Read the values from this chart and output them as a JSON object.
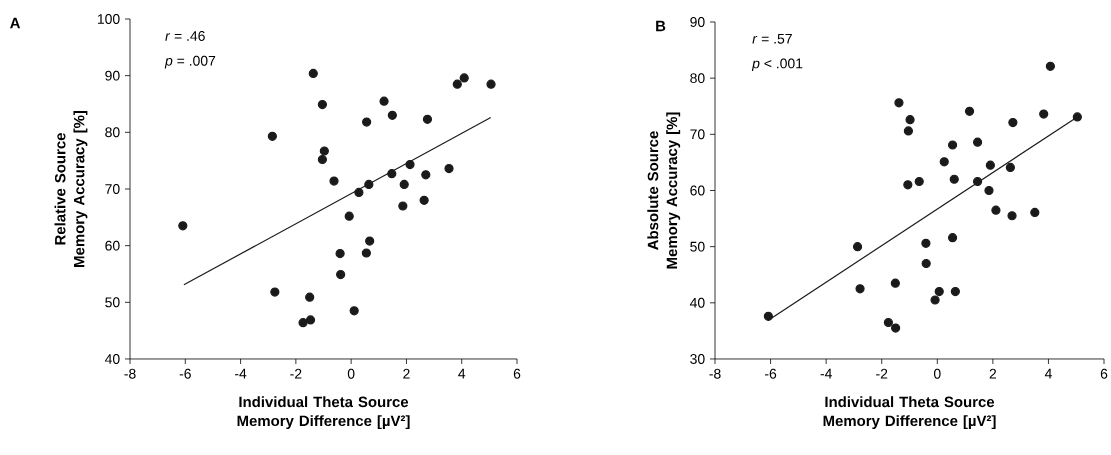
{
  "chart_data": [
    {
      "type": "scatter",
      "title": "A",
      "xlabel": "Individual Theta Source Memory Difference [µV²]",
      "ylabel": "Relative Source Memory Accuracy [%]",
      "annotations": [
        "*r* = .46",
        "*p* = .007"
      ],
      "grid": false,
      "xlim": [
        -8,
        6
      ],
      "xticks": [
        -8,
        -6,
        -4,
        -2,
        0,
        2,
        4,
        6
      ],
      "ylim": [
        40,
        100
      ],
      "yticks": [
        40,
        50,
        60,
        70,
        80,
        90,
        100
      ],
      "series": [
        {
          "marker": "circle",
          "color": "#1a1a1a",
          "x": [
            -6.09,
            -2.85,
            -2.76,
            -1.37,
            -1.5,
            -1.74,
            -1.47,
            -1.04,
            -0.97,
            -1.04,
            -0.62,
            -0.4,
            -0.38,
            -0.07,
            0.11,
            0.28,
            0.56,
            0.64,
            0.55,
            0.67,
            1.19,
            1.49,
            1.47,
            1.87,
            1.92,
            2.13,
            2.64,
            2.7,
            2.76,
            3.54,
            3.84,
            4.09,
            5.06
          ],
          "values": [
            63.5,
            79.3,
            51.8,
            90.4,
            50.9,
            46.4,
            46.9,
            84.9,
            76.7,
            75.2,
            71.4,
            58.6,
            54.9,
            65.2,
            48.5,
            69.4,
            81.8,
            70.8,
            58.7,
            60.8,
            85.5,
            83.0,
            72.7,
            67.0,
            70.8,
            74.3,
            68.0,
            72.5,
            82.3,
            73.6,
            88.5,
            89.6,
            88.5
          ]
        },
        {
          "type": "line",
          "marker": "none",
          "color": "#1a1a1a",
          "x": [
            -6.05,
            5.05
          ],
          "values": [
            53.1,
            82.6
          ]
        }
      ]
    },
    {
      "type": "scatter",
      "title": "B",
      "xlabel": "Individual Theta Source Memory Difference [µV²]",
      "ylabel": "Absolute Source Memory Accuracy [%]",
      "annotations": [
        "*r* = .57",
        "*p* < .001"
      ],
      "grid": false,
      "xlim": [
        -8,
        6
      ],
      "xticks": [
        -8,
        -6,
        -4,
        -2,
        0,
        2,
        4,
        6
      ],
      "ylim": [
        30,
        90
      ],
      "yticks": [
        30,
        40,
        50,
        60,
        70,
        80,
        90
      ],
      "series": [
        {
          "marker": "circle",
          "color": "#1a1a1a",
          "x": [
            -6.08,
            -2.87,
            -2.78,
            -1.38,
            -1.51,
            -1.76,
            -1.5,
            -0.98,
            -1.04,
            -1.06,
            -0.65,
            -0.41,
            -0.4,
            -0.08,
            0.07,
            0.25,
            0.55,
            0.61,
            0.55,
            0.65,
            1.16,
            1.45,
            1.45,
            1.86,
            1.91,
            2.11,
            2.63,
            2.69,
            2.72,
            3.51,
            3.83,
            4.07,
            5.04
          ],
          "values": [
            37.6,
            50.0,
            42.5,
            75.6,
            43.5,
            36.5,
            35.5,
            72.6,
            70.6,
            61.0,
            61.6,
            50.6,
            47.0,
            40.5,
            42.0,
            65.1,
            68.1,
            62.0,
            51.6,
            42.0,
            74.1,
            68.6,
            61.6,
            60.0,
            64.5,
            56.5,
            64.1,
            55.5,
            72.1,
            56.1,
            73.6,
            82.1,
            73.1
          ]
        },
        {
          "type": "line",
          "marker": "none",
          "color": "#1a1a1a",
          "x": [
            -6.08,
            5.04
          ],
          "values": [
            36.9,
            73.1
          ]
        }
      ]
    }
  ]
}
